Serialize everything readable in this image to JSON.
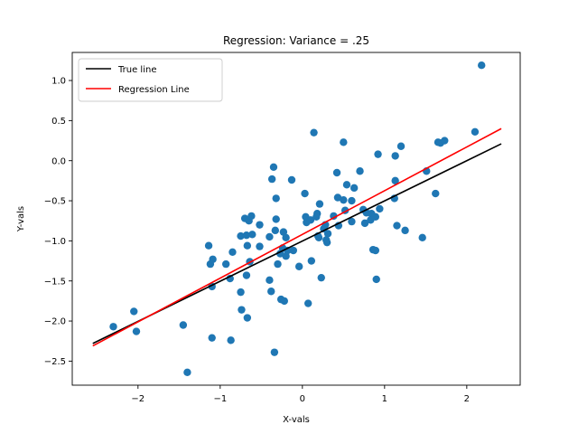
{
  "chart_data": {
    "type": "scatter",
    "title": "Regression: Variance = .25",
    "xlabel": "X-vals",
    "ylabel": "Y-vals",
    "xlim": [
      -2.8,
      2.65
    ],
    "ylim": [
      -2.8,
      1.35
    ],
    "xticks": [
      -2,
      -1,
      0,
      1,
      2
    ],
    "xtick_labels": [
      "−2",
      "−1",
      "0",
      "1",
      "2"
    ],
    "yticks": [
      -2.5,
      -2.0,
      -1.5,
      -1.0,
      -0.5,
      0.0,
      0.5,
      1.0
    ],
    "ytick_labels": [
      "−2.5",
      "−2.0",
      "−1.5",
      "−1.0",
      "−0.5",
      "0.0",
      "0.5",
      "1.0"
    ],
    "grid": false,
    "legend_position": "top-left",
    "points_color": "#1f77b4",
    "points": [
      [
        -2.3,
        -2.07
      ],
      [
        -2.05,
        -1.88
      ],
      [
        -2.02,
        -2.13
      ],
      [
        -1.45,
        -2.05
      ],
      [
        -1.4,
        -2.64
      ],
      [
        -1.14,
        -1.06
      ],
      [
        -1.12,
        -1.29
      ],
      [
        -1.09,
        -1.23
      ],
      [
        -1.1,
        -1.57
      ],
      [
        -1.1,
        -2.21
      ],
      [
        -0.93,
        -1.29
      ],
      [
        -0.88,
        -1.47
      ],
      [
        -0.87,
        -2.24
      ],
      [
        -0.85,
        -1.14
      ],
      [
        -0.75,
        -0.94
      ],
      [
        -0.75,
        -1.64
      ],
      [
        -0.74,
        -1.86
      ],
      [
        -0.7,
        -0.72
      ],
      [
        -0.68,
        -0.93
      ],
      [
        -0.68,
        -1.43
      ],
      [
        -0.67,
        -1.06
      ],
      [
        -0.67,
        -1.96
      ],
      [
        -0.65,
        -0.75
      ],
      [
        -0.64,
        -1.26
      ],
      [
        -0.62,
        -0.69
      ],
      [
        -0.61,
        -0.92
      ],
      [
        -0.52,
        -0.8
      ],
      [
        -0.52,
        -1.07
      ],
      [
        -0.4,
        -0.95
      ],
      [
        -0.4,
        -1.49
      ],
      [
        -0.38,
        -1.63
      ],
      [
        -0.37,
        -0.23
      ],
      [
        -0.35,
        -0.08
      ],
      [
        -0.34,
        -2.39
      ],
      [
        -0.33,
        -0.87
      ],
      [
        -0.32,
        -0.73
      ],
      [
        -0.32,
        -0.47
      ],
      [
        -0.3,
        -1.29
      ],
      [
        -0.27,
        -1.16
      ],
      [
        -0.26,
        -1.73
      ],
      [
        -0.24,
        -1.09
      ],
      [
        -0.23,
        -0.89
      ],
      [
        -0.22,
        -1.75
      ],
      [
        -0.2,
        -0.96
      ],
      [
        -0.2,
        -1.19
      ],
      [
        -0.18,
        -1.12
      ],
      [
        -0.13,
        -0.24
      ],
      [
        -0.11,
        -1.12
      ],
      [
        -0.04,
        -1.32
      ],
      [
        0.03,
        -0.41
      ],
      [
        0.04,
        -0.7
      ],
      [
        0.05,
        -0.77
      ],
      [
        0.07,
        -1.78
      ],
      [
        0.1,
        -0.74
      ],
      [
        0.11,
        -1.25
      ],
      [
        0.14,
        0.35
      ],
      [
        0.17,
        -0.7
      ],
      [
        0.18,
        -0.66
      ],
      [
        0.19,
        -0.94
      ],
      [
        0.2,
        -0.96
      ],
      [
        0.21,
        -0.54
      ],
      [
        0.23,
        -1.46
      ],
      [
        0.26,
        -0.85
      ],
      [
        0.28,
        -0.8
      ],
      [
        0.29,
        -0.99
      ],
      [
        0.3,
        -1.02
      ],
      [
        0.31,
        -0.91
      ],
      [
        0.38,
        -0.69
      ],
      [
        0.42,
        -0.15
      ],
      [
        0.43,
        -0.46
      ],
      [
        0.44,
        -0.81
      ],
      [
        0.5,
        -0.49
      ],
      [
        0.5,
        0.23
      ],
      [
        0.52,
        -0.62
      ],
      [
        0.54,
        -0.3
      ],
      [
        0.6,
        -0.76
      ],
      [
        0.6,
        -0.5
      ],
      [
        0.63,
        -0.34
      ],
      [
        0.7,
        -0.13
      ],
      [
        0.74,
        -0.61
      ],
      [
        0.76,
        -0.78
      ],
      [
        0.78,
        -0.65
      ],
      [
        0.83,
        -0.74
      ],
      [
        0.84,
        -0.66
      ],
      [
        0.86,
        -0.69
      ],
      [
        0.86,
        -1.11
      ],
      [
        0.89,
        -0.7
      ],
      [
        0.89,
        -1.12
      ],
      [
        0.9,
        -1.48
      ],
      [
        0.92,
        0.08
      ],
      [
        0.94,
        -0.6
      ],
      [
        1.12,
        -0.47
      ],
      [
        1.13,
        -0.25
      ],
      [
        1.13,
        0.06
      ],
      [
        1.15,
        -0.81
      ],
      [
        1.2,
        0.18
      ],
      [
        1.25,
        -0.87
      ],
      [
        1.46,
        -0.96
      ],
      [
        1.51,
        -0.13
      ],
      [
        1.62,
        -0.41
      ],
      [
        1.65,
        0.23
      ],
      [
        1.68,
        0.22
      ],
      [
        1.73,
        0.25
      ],
      [
        2.1,
        0.36
      ],
      [
        2.18,
        1.19
      ]
    ],
    "series": [
      {
        "name": "True line",
        "color": "#000000",
        "x": [
          -2.55,
          2.42
        ],
        "y": [
          -2.28,
          0.21
        ]
      },
      {
        "name": "Regression Line",
        "color": "#ff0000",
        "x": [
          -2.55,
          2.42
        ],
        "y": [
          -2.31,
          0.4
        ]
      }
    ]
  }
}
